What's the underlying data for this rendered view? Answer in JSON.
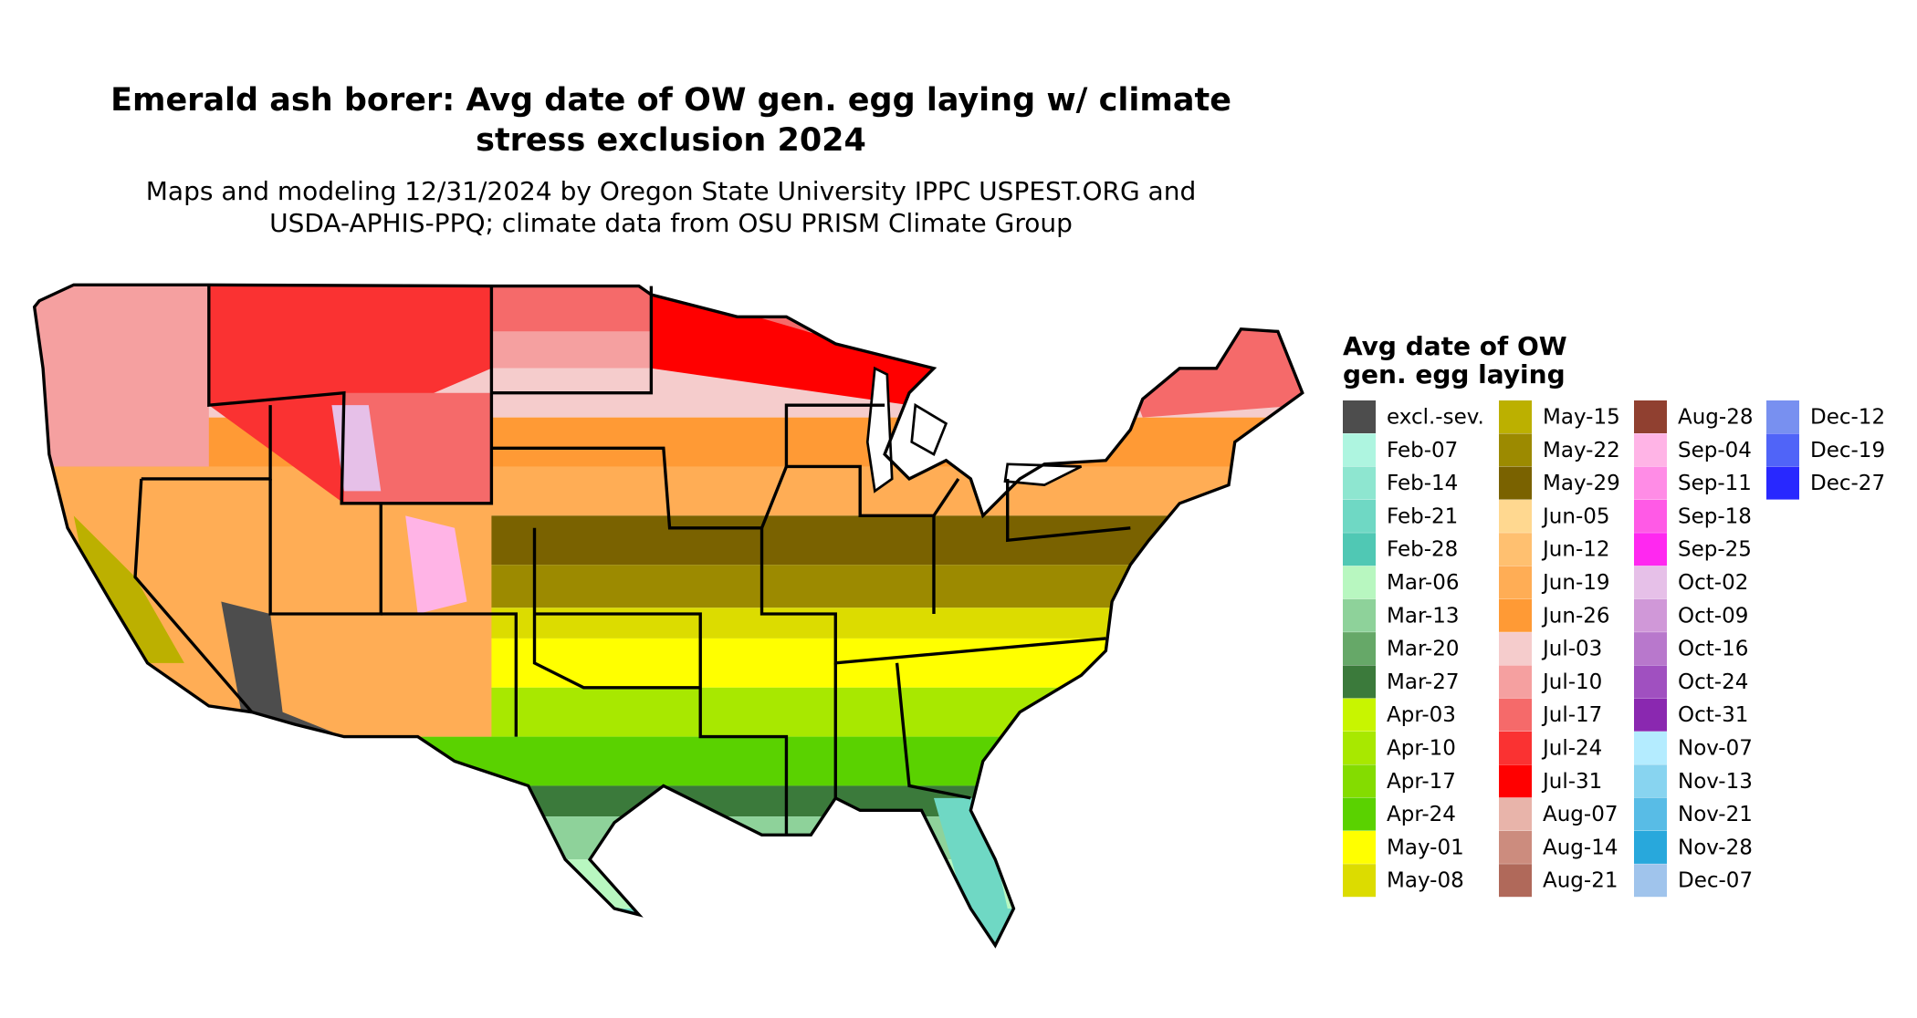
{
  "header": {
    "title_line1": "Emerald ash borer: Avg date of OW gen. egg laying w/ climate",
    "title_line2": "stress exclusion 2024",
    "subtitle_line1": "Maps and modeling 12/31/2024 by Oregon State University IPPC USPEST.ORG and",
    "subtitle_line2": "USDA-APHIS-PPQ; climate data from OSU PRISM Climate Group"
  },
  "legend": {
    "title_line1": "Avg date of OW",
    "title_line2": "gen. egg laying",
    "items": [
      {
        "label": "excl.-sev.",
        "color": "#4d4d4d"
      },
      {
        "label": "Feb-07",
        "color": "#aef5e0"
      },
      {
        "label": "Feb-14",
        "color": "#8ee6d0"
      },
      {
        "label": "Feb-21",
        "color": "#6fd8c4"
      },
      {
        "label": "Feb-28",
        "color": "#50c8b4"
      },
      {
        "label": "Mar-06",
        "color": "#b8f7c0"
      },
      {
        "label": "Mar-13",
        "color": "#8ed29a"
      },
      {
        "label": "Mar-20",
        "color": "#66a868"
      },
      {
        "label": "Mar-27",
        "color": "#3b7a3b"
      },
      {
        "label": "Apr-03",
        "color": "#c8f500"
      },
      {
        "label": "Apr-10",
        "color": "#a8e800"
      },
      {
        "label": "Apr-17",
        "color": "#84dc00"
      },
      {
        "label": "Apr-24",
        "color": "#5ad200"
      },
      {
        "label": "May-01",
        "color": "#ffff00"
      },
      {
        "label": "May-08",
        "color": "#dcdc00"
      },
      {
        "label": "May-15",
        "color": "#bcb000"
      },
      {
        "label": "May-22",
        "color": "#9c8a00"
      },
      {
        "label": "May-29",
        "color": "#7a6200"
      },
      {
        "label": "Jun-05",
        "color": "#ffd890"
      },
      {
        "label": "Jun-12",
        "color": "#ffc070"
      },
      {
        "label": "Jun-19",
        "color": "#ffad55"
      },
      {
        "label": "Jun-26",
        "color": "#ff9a35"
      },
      {
        "label": "Jul-03",
        "color": "#f5cccc"
      },
      {
        "label": "Jul-10",
        "color": "#f5a0a0"
      },
      {
        "label": "Jul-17",
        "color": "#f56a6a"
      },
      {
        "label": "Jul-24",
        "color": "#fa3232"
      },
      {
        "label": "Jul-31",
        "color": "#ff0000"
      },
      {
        "label": "Aug-07",
        "color": "#e8b4aa"
      },
      {
        "label": "Aug-14",
        "color": "#cc8c7e"
      },
      {
        "label": "Aug-21",
        "color": "#b0695a"
      },
      {
        "label": "Aug-28",
        "color": "#904030"
      },
      {
        "label": "Sep-04",
        "color": "#ffb4e6"
      },
      {
        "label": "Sep-11",
        "color": "#ff8ce6"
      },
      {
        "label": "Sep-18",
        "color": "#ff5ae6"
      },
      {
        "label": "Sep-25",
        "color": "#ff28f0"
      },
      {
        "label": "Oct-02",
        "color": "#e6c0e8"
      },
      {
        "label": "Oct-09",
        "color": "#d098d8"
      },
      {
        "label": "Oct-16",
        "color": "#b878cc"
      },
      {
        "label": "Oct-24",
        "color": "#a050c0"
      },
      {
        "label": "Oct-31",
        "color": "#8a28b0"
      },
      {
        "label": "Nov-07",
        "color": "#b4ecff"
      },
      {
        "label": "Nov-13",
        "color": "#88d4f0"
      },
      {
        "label": "Nov-21",
        "color": "#58bce6"
      },
      {
        "label": "Nov-28",
        "color": "#28a8dc"
      },
      {
        "label": "Dec-07",
        "color": "#a0c4ec"
      },
      {
        "label": "Dec-12",
        "color": "#7890f0"
      },
      {
        "label": "Dec-19",
        "color": "#5064f8"
      },
      {
        "label": "Dec-27",
        "color": "#2828ff"
      }
    ]
  }
}
